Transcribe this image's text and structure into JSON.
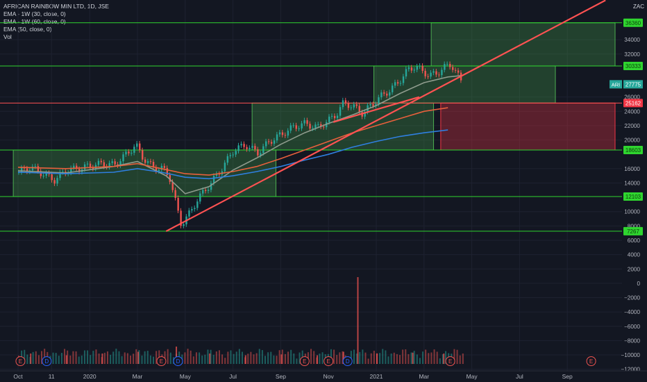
{
  "legend": {
    "symbol_line": "AFRICAN RAINBOW MIN LTD, 1D, JSE",
    "ema1": "EMA - 1W (30, close, 0)",
    "ema2": "EMA - 1W (60, close, 0)",
    "ema3": "EMA (50, close, 0)",
    "vol": "Vol"
  },
  "chart_data": {
    "type": "candlestick",
    "currency": "ZAC",
    "ylim": [
      -13000,
      37600
    ],
    "y_ticks": [
      34000,
      32000,
      26000,
      24000,
      22000,
      20000,
      16000,
      14000,
      10000,
      8000,
      6000,
      4000,
      2000,
      0,
      -2000,
      -4000,
      -6000,
      -8000,
      -10000,
      -12000
    ],
    "x_ticks": [
      "Oct",
      "11",
      "2020",
      "Mar",
      "May",
      "Jul",
      "Sep",
      "Nov",
      "2021",
      "Mar",
      "May",
      "Jul",
      "Sep"
    ],
    "x_tick_months": [
      0,
      1.4,
      3,
      5,
      7,
      9,
      11,
      13,
      15,
      17,
      19,
      21,
      23
    ],
    "x_tick_labels_note": "months counted from 2019-10-01",
    "last_price": {
      "label": "ARI",
      "value": 27775
    },
    "horizontal_levels": [
      {
        "value": 36360,
        "label": "36360",
        "color": "#2fd52f"
      },
      {
        "value": 30333,
        "label": "30333",
        "color": "#2fd52f"
      },
      {
        "value": 25162,
        "label": "25162",
        "color": "#ff5252"
      },
      {
        "value": 18603,
        "label": "18603",
        "color": "#2fd52f"
      },
      {
        "value": 12103,
        "label": "12103",
        "color": "#2fd52f"
      },
      {
        "value": 7267,
        "label": "7267",
        "color": "#2fd52f"
      }
    ],
    "zones": [
      {
        "x_from": -0.2,
        "x_to": 10.8,
        "y_from": 12103,
        "y_to": 18603,
        "color": "green"
      },
      {
        "x_from": 9.8,
        "x_to": 17.4,
        "y_from": 18603,
        "y_to": 25162,
        "color": "green"
      },
      {
        "x_from": 14.9,
        "x_to": 22.5,
        "y_from": 25162,
        "y_to": 30333,
        "color": "green"
      },
      {
        "x_from": 17.3,
        "x_to": 25.0,
        "y_from": 30333,
        "y_to": 36360,
        "color": "green"
      },
      {
        "x_from": 17.7,
        "x_to": 25.0,
        "y_from": 18603,
        "y_to": 25162,
        "color": "red"
      }
    ],
    "trendlines": [
      {
        "x1": 6.2,
        "y1": 7267,
        "x2": 24.6,
        "y2": 39500,
        "color": "#ff5252"
      },
      {
        "x1": 13.2,
        "y1": 22500,
        "x2": 16.8,
        "y2": 26000,
        "color": "#ff5252"
      }
    ],
    "series": [
      {
        "name": "Close",
        "points": [
          [
            0,
            15500
          ],
          [
            0.5,
            16200
          ],
          [
            1,
            15300
          ],
          [
            1.5,
            14400
          ],
          [
            2,
            15800
          ],
          [
            2.5,
            16000
          ],
          [
            3,
            16400
          ],
          [
            3.5,
            16700
          ],
          [
            4,
            16500
          ],
          [
            4.4,
            17700
          ],
          [
            4.9,
            19300
          ],
          [
            5.2,
            17500
          ],
          [
            5.6,
            16200
          ],
          [
            6,
            16000
          ],
          [
            6.3,
            15000
          ],
          [
            6.6,
            10800
          ],
          [
            6.8,
            8200
          ],
          [
            7.1,
            9500
          ],
          [
            7.5,
            11800
          ],
          [
            8,
            13800
          ],
          [
            8.5,
            16000
          ],
          [
            9,
            18600
          ],
          [
            9.5,
            19300
          ],
          [
            10,
            18200
          ],
          [
            10.5,
            19800
          ],
          [
            11,
            20800
          ],
          [
            11.5,
            21800
          ],
          [
            12,
            22300
          ],
          [
            12.5,
            21700
          ],
          [
            13,
            22800
          ],
          [
            13.3,
            23600
          ],
          [
            13.6,
            25200
          ],
          [
            14,
            24700
          ],
          [
            14.4,
            23700
          ],
          [
            14.8,
            25000
          ],
          [
            15.2,
            26200
          ],
          [
            15.6,
            27100
          ],
          [
            16,
            28500
          ],
          [
            16.3,
            29800
          ],
          [
            16.6,
            30300
          ],
          [
            16.9,
            29600
          ],
          [
            17.2,
            29000
          ],
          [
            17.5,
            29300
          ],
          [
            17.8,
            30100
          ],
          [
            18.1,
            30600
          ],
          [
            18.4,
            28900
          ],
          [
            18.6,
            27775
          ]
        ]
      },
      {
        "name": "EMA 1W 30",
        "points": [
          [
            0,
            15700
          ],
          [
            2,
            15400
          ],
          [
            4,
            16300
          ],
          [
            5,
            17000
          ],
          [
            6.2,
            15000
          ],
          [
            7,
            12500
          ],
          [
            8,
            13500
          ],
          [
            9,
            15800
          ],
          [
            10,
            17500
          ],
          [
            11,
            19400
          ],
          [
            12,
            21000
          ],
          [
            13,
            22300
          ],
          [
            14,
            23500
          ],
          [
            15,
            24800
          ],
          [
            16,
            26500
          ],
          [
            17,
            28000
          ],
          [
            18,
            28800
          ],
          [
            18.6,
            29000
          ]
        ]
      },
      {
        "name": "EMA 1W 60",
        "points": [
          [
            0,
            16200
          ],
          [
            2,
            16000
          ],
          [
            4,
            16300
          ],
          [
            5,
            16700
          ],
          [
            6,
            16000
          ],
          [
            7,
            15300
          ],
          [
            8,
            15100
          ],
          [
            9,
            15600
          ],
          [
            10,
            16300
          ],
          [
            11,
            17400
          ],
          [
            12,
            18600
          ],
          [
            13,
            19800
          ],
          [
            14,
            21000
          ],
          [
            15,
            22000
          ],
          [
            16,
            23000
          ],
          [
            17,
            24000
          ],
          [
            18,
            24500
          ]
        ]
      },
      {
        "name": "EMA 50",
        "points": [
          [
            0,
            15500
          ],
          [
            2,
            15300
          ],
          [
            4,
            15500
          ],
          [
            5,
            16000
          ],
          [
            6,
            15500
          ],
          [
            7,
            14800
          ],
          [
            8,
            14600
          ],
          [
            9,
            15000
          ],
          [
            10,
            15600
          ],
          [
            11,
            16300
          ],
          [
            12,
            17200
          ],
          [
            13,
            18000
          ],
          [
            14,
            19000
          ],
          [
            15,
            19800
          ],
          [
            16,
            20500
          ],
          [
            17,
            21000
          ],
          [
            18,
            21400
          ]
        ]
      }
    ],
    "volume": [
      {
        "x": 14.2,
        "value": 1.0
      },
      {
        "x": 0.5,
        "value": 0.12
      },
      {
        "x": 2,
        "value": 0.1
      },
      {
        "x": 3.5,
        "value": 0.12
      },
      {
        "x": 5,
        "value": 0.14
      },
      {
        "x": 6.6,
        "value": 0.2
      },
      {
        "x": 8,
        "value": 0.12
      },
      {
        "x": 9.5,
        "value": 0.1
      },
      {
        "x": 11,
        "value": 0.11
      },
      {
        "x": 12.5,
        "value": 0.1
      },
      {
        "x": 13.6,
        "value": 0.14
      },
      {
        "x": 15,
        "value": 0.12
      },
      {
        "x": 16.5,
        "value": 0.13
      },
      {
        "x": 17.8,
        "value": 0.12
      }
    ],
    "events": [
      {
        "x": 0.1,
        "label": "E",
        "kind": "earnings"
      },
      {
        "x": 1.2,
        "label": "D",
        "kind": "dividend"
      },
      {
        "x": 6.0,
        "label": "E",
        "kind": "earnings"
      },
      {
        "x": 6.7,
        "label": "D",
        "kind": "dividend"
      },
      {
        "x": 12.0,
        "label": "E",
        "kind": "earnings"
      },
      {
        "x": 13.0,
        "label": "E",
        "kind": "earnings"
      },
      {
        "x": 13.8,
        "label": "D",
        "kind": "dividend"
      },
      {
        "x": 18.1,
        "label": "E",
        "kind": "earnings"
      },
      {
        "x": 24.0,
        "label": "E",
        "kind": "earnings"
      }
    ]
  }
}
